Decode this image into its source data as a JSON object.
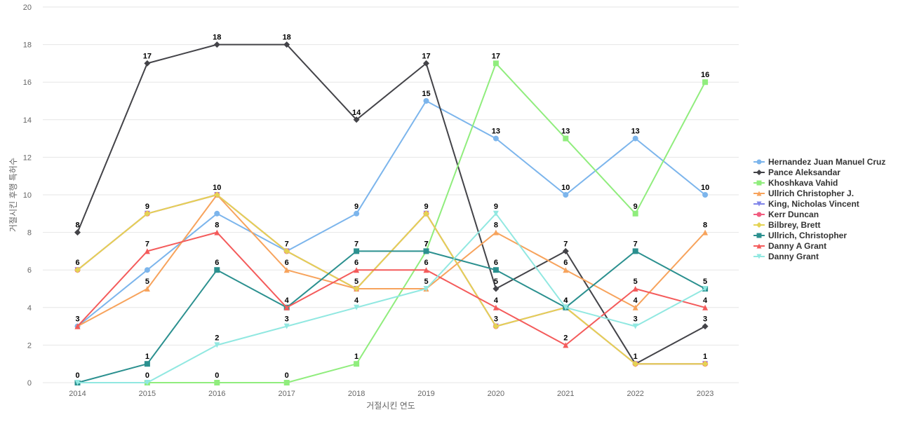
{
  "chart_data": {
    "type": "line",
    "title": "",
    "xlabel": "거절시킨 연도",
    "ylabel": "거절시킨 후행 특허수",
    "x": [
      "2014",
      "2015",
      "2016",
      "2017",
      "2018",
      "2019",
      "2020",
      "2021",
      "2022",
      "2023"
    ],
    "ylim": [
      0,
      20
    ],
    "yticks": [
      0,
      2,
      4,
      6,
      8,
      10,
      12,
      14,
      16,
      18,
      20
    ],
    "grid": true,
    "legend_position": "right",
    "series": [
      {
        "name": "Hernandez Juan Manuel Cruz",
        "color": "#7cb5ec",
        "marker": "circle",
        "values": [
          3,
          6,
          9,
          7,
          9,
          15,
          13,
          10,
          13,
          10
        ],
        "labels": [
          null,
          null,
          null,
          null,
          "9",
          "15",
          "13",
          "10",
          "13",
          "10"
        ]
      },
      {
        "name": "Pance Aleksandar",
        "color": "#434348",
        "marker": "diamond",
        "values": [
          8,
          17,
          18,
          18,
          14,
          17,
          5,
          7,
          1,
          3
        ],
        "labels": [
          "8",
          "17",
          "18",
          "18",
          "14",
          "17",
          "5",
          "7",
          "1",
          "3"
        ]
      },
      {
        "name": "Khoshkava Vahid",
        "color": "#90ed7d",
        "marker": "square",
        "values": [
          0,
          0,
          0,
          0,
          1,
          7,
          17,
          13,
          9,
          16
        ],
        "labels": [
          "0",
          "0",
          "0",
          "0",
          "1",
          "7",
          "17",
          "13",
          "9",
          "16"
        ]
      },
      {
        "name": "Ullrich Christopher J.",
        "color": "#f7a35c",
        "marker": "triangle",
        "values": [
          3,
          5,
          10,
          6,
          5,
          5,
          8,
          6,
          4,
          8
        ],
        "labels": [
          null,
          "5",
          null,
          "6",
          "5",
          "5",
          "8",
          "6",
          "4",
          "8"
        ]
      },
      {
        "name": "King, Nicholas Vincent",
        "color": "#8085e9",
        "marker": "triangle-down",
        "values": [
          6,
          9,
          10,
          7,
          5,
          9,
          3,
          4,
          1,
          1
        ],
        "labels": [
          null,
          null,
          null,
          null,
          null,
          null,
          null,
          null,
          null,
          null
        ]
      },
      {
        "name": "Kerr Duncan",
        "color": "#f15c80",
        "marker": "circle",
        "values": [
          6,
          9,
          10,
          7,
          5,
          9,
          3,
          4,
          1,
          1
        ],
        "labels": [
          null,
          null,
          null,
          null,
          null,
          null,
          null,
          null,
          null,
          null
        ]
      },
      {
        "name": "Bilbrey, Brett",
        "color": "#e4d354",
        "marker": "diamond",
        "values": [
          6,
          9,
          10,
          7,
          5,
          9,
          3,
          4,
          1,
          1
        ],
        "labels": [
          "6",
          "9",
          "10",
          "7",
          null,
          "9",
          "3",
          "4",
          null,
          "1"
        ]
      },
      {
        "name": "Ullrich, Christopher",
        "color": "#2b908f",
        "marker": "square",
        "values": [
          0,
          1,
          6,
          4,
          7,
          7,
          6,
          4,
          7,
          5
        ],
        "labels": [
          null,
          "1",
          "6",
          null,
          "7",
          "7",
          "6",
          "4",
          "7",
          "5"
        ]
      },
      {
        "name": "Danny A Grant",
        "color": "#f45b5b",
        "marker": "triangle",
        "values": [
          3,
          7,
          8,
          4,
          6,
          6,
          4,
          2,
          5,
          4
        ],
        "labels": [
          "3",
          "7",
          "8",
          "4",
          "6",
          "6",
          "4",
          "2",
          "5",
          "4"
        ]
      },
      {
        "name": "Danny Grant",
        "color": "#91e8e1",
        "marker": "triangle-down",
        "values": [
          0,
          0,
          2,
          3,
          4,
          5,
          9,
          4,
          3,
          5
        ],
        "labels": [
          null,
          null,
          "2",
          "3",
          "4",
          null,
          "9",
          null,
          "3",
          null
        ]
      }
    ]
  }
}
